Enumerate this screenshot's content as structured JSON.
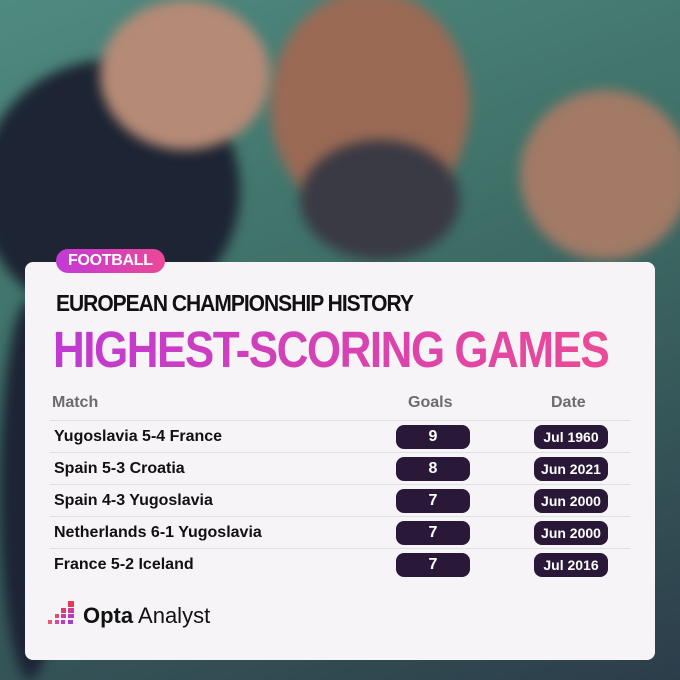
{
  "tag": "FOOTBALL",
  "subtitle": "EUROPEAN CHAMPIONSHIP HISTORY",
  "title": "HIGHEST-SCORING GAMES",
  "columns": {
    "match": "Match",
    "goals": "Goals",
    "date": "Date"
  },
  "rows": [
    {
      "match": "Yugoslavia 5-4 France",
      "goals": "9",
      "date": "Jul 1960"
    },
    {
      "match": "Spain 5-3 Croatia",
      "goals": "8",
      "date": "Jun 2021"
    },
    {
      "match": "Spain 4-3 Yugoslavia",
      "goals": "7",
      "date": "Jun 2000"
    },
    {
      "match": "Netherlands 6-1 Yugoslavia",
      "goals": "7",
      "date": "Jun 2000"
    },
    {
      "match": "France 5-2 Iceland",
      "goals": "7",
      "date": "Jul 2016"
    }
  ],
  "brand": {
    "bold": "Opta",
    "light": "Analyst"
  },
  "colors": {
    "accent_start": "#bf3ad2",
    "accent_end": "#ec4a95",
    "pill": "#2a1838"
  }
}
